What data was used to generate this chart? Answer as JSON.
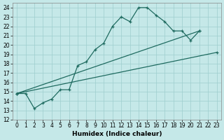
{
  "xlabel": "Humidex (Indice chaleur)",
  "xlim": [
    -0.5,
    23.5
  ],
  "ylim": [
    12,
    24.5
  ],
  "xticks": [
    0,
    1,
    2,
    3,
    4,
    5,
    6,
    7,
    8,
    9,
    10,
    11,
    12,
    13,
    14,
    15,
    16,
    17,
    18,
    19,
    20,
    21,
    22,
    23
  ],
  "yticks": [
    12,
    13,
    14,
    15,
    16,
    17,
    18,
    19,
    20,
    21,
    22,
    23,
    24
  ],
  "background_color": "#c5e8e8",
  "grid_color": "#9dcece",
  "line_color": "#1f6b60",
  "series": [
    {
      "x": [
        0,
        1,
        2,
        3,
        4,
        5,
        6,
        7,
        8,
        9,
        10,
        11,
        12,
        13,
        14,
        15,
        16,
        17,
        18,
        19,
        20,
        21
      ],
      "y": [
        14.8,
        14.8,
        13.2,
        13.8,
        14.2,
        15.2,
        15.2,
        17.8,
        18.2,
        19.5,
        20.2,
        22.0,
        23.0,
        22.5,
        24.0,
        24.0,
        23.2,
        22.5,
        21.5,
        21.5,
        20.5,
        21.5
      ]
    },
    {
      "x": [
        0,
        21
      ],
      "y": [
        14.8,
        21.5
      ]
    },
    {
      "x": [
        0,
        23
      ],
      "y": [
        14.8,
        19.2
      ]
    }
  ]
}
